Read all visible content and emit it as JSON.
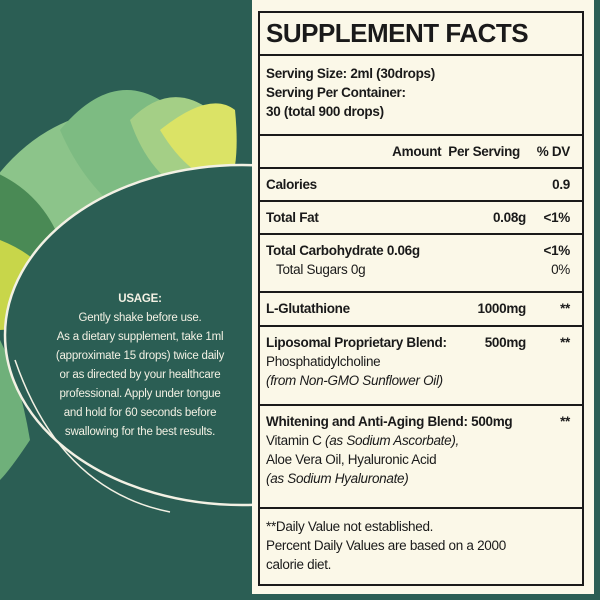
{
  "colors": {
    "background": "#2b5e54",
    "panel": "#fbf8e8",
    "text": "#1a1a1a",
    "leaf_light": "#a8d08a",
    "leaf_yellow": "#dbe366"
  },
  "usage": {
    "heading": "USAGE:",
    "lines": [
      "Gently shake before use.",
      "As a dietary supplement, take 1ml",
      "(approximate 15 drops) twice daily",
      "or as directed by your healthcare",
      "professional. Apply under tongue",
      "and hold for 60 seconds before",
      "swallowing for the best results."
    ]
  },
  "facts": {
    "title": "SUPPLEMENT FACTS",
    "serving_size": "Serving Size: 2ml (30drops)",
    "serving_per_container_label": "Serving Per Container:",
    "serving_per_container_value": "30 (total 900 drops)",
    "header_amount": "Amount  Per Serving",
    "header_dv": "% DV",
    "calories": {
      "label": "Calories",
      "dv": "0.9"
    },
    "total_fat": {
      "label": "Total Fat",
      "amount": "0.08g",
      "dv": "<1%"
    },
    "total_carb": {
      "label": "Total Carbohydrate 0.06g",
      "dv": "<1%"
    },
    "total_sugars": {
      "label": "Total Sugars 0g",
      "dv": "0%"
    },
    "glutathione": {
      "label": "L-Glutathione",
      "amount": "1000mg",
      "dv": "**"
    },
    "liposomal": {
      "label": "Liposomal Proprietary Blend:",
      "amount": "500mg",
      "dv": "**",
      "line2": "Phosphatidylcholine",
      "line3": "(from Non-GMO Sunflower Oil)"
    },
    "whitening": {
      "label": "Whitening and Anti-Aging Blend: 500mg",
      "dv": "**",
      "line2a": "Vitamin C ",
      "line2b": "(as Sodium Ascorbate),",
      "line3": "Aloe Vera Oil, Hyaluronic Acid",
      "line4": "(as Sodium Hyaluronate)"
    },
    "footnote": [
      "**Daily Value not established.",
      "Percent Daily Values are based on a 2000",
      "calorie diet."
    ]
  }
}
